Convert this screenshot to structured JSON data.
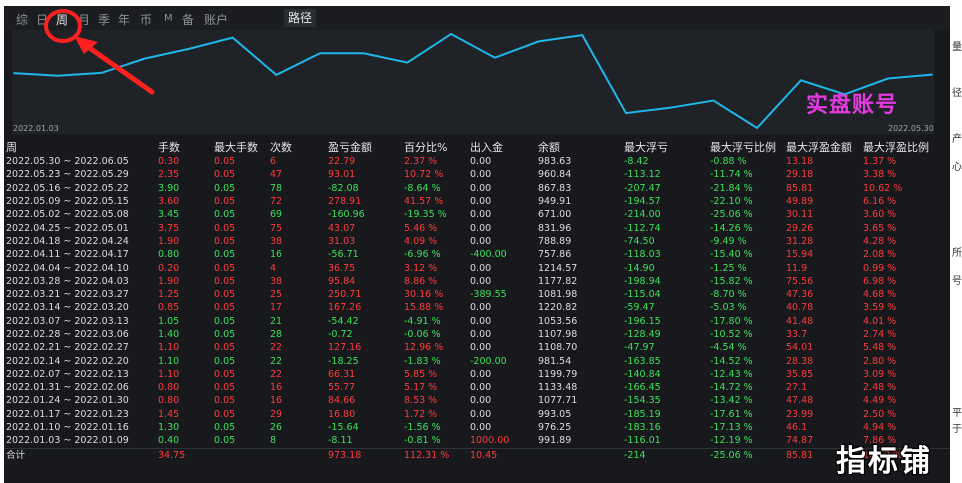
{
  "tabs": [
    {
      "id": "zong",
      "label": "综"
    },
    {
      "id": "ri",
      "label": "日"
    },
    {
      "id": "zhou",
      "label": "周",
      "active": true
    },
    {
      "id": "yue",
      "label": "月"
    },
    {
      "id": "ji",
      "label": "季"
    },
    {
      "id": "nian",
      "label": "年"
    },
    {
      "id": "bi",
      "label": "币"
    },
    {
      "id": "m",
      "label": "M"
    },
    {
      "id": "bei",
      "label": "备"
    },
    {
      "id": "zhanghu",
      "label": "账户"
    }
  ],
  "path_button_label": "路径",
  "watermark_label": "实盘账号",
  "corner_watermark": "指标铺",
  "colors": {
    "line": "#1fb6e8",
    "positive": "#ff3b3b",
    "negative": "#3ee05a",
    "annotation": "#ff2020",
    "watermark": "#e43be0"
  },
  "chart_data": {
    "type": "line",
    "x_start_label": "2022.01.03",
    "x_end_label": "2022.05.30",
    "x": [
      "2022.01.03",
      "2022.01.10",
      "2022.01.17",
      "2022.01.24",
      "2022.01.31",
      "2022.02.07",
      "2022.02.14",
      "2022.02.21",
      "2022.02.28",
      "2022.03.07",
      "2022.03.14",
      "2022.03.21",
      "2022.03.28",
      "2022.04.04",
      "2022.04.11",
      "2022.04.18",
      "2022.04.25",
      "2022.05.02",
      "2022.05.09",
      "2022.05.16",
      "2022.05.23",
      "2022.05.30"
    ],
    "series": [
      {
        "values": [
          991.89,
          976.25,
          993.05,
          1077.71,
          1133.48,
          1199.79,
          981.54,
          1108.7,
          1107.98,
          1053.56,
          1220.82,
          1081.98,
          1177.82,
          1214.57,
          757.86,
          788.89,
          831.96,
          671.0,
          949.91,
          867.83,
          960.84,
          983.63
        ]
      }
    ],
    "grid": false
  },
  "table": {
    "headers": [
      "周",
      "手数",
      "最大手数",
      "次数",
      "盈亏金额",
      "百分比%",
      "出入金",
      "余额",
      "最大浮亏",
      "最大浮亏比例",
      "最大浮盈金额",
      "最大浮盈比例"
    ],
    "rows": [
      [
        "2022.05.30 ~ 2022.06.05",
        "0.30",
        "0.05",
        "6",
        "22.79",
        "2.37 %",
        "0.00",
        "983.63",
        "-8.42",
        "-0.88 %",
        "13.18",
        "1.37 %"
      ],
      [
        "2022.05.23 ~ 2022.05.29",
        "2.35",
        "0.05",
        "47",
        "93.01",
        "10.72 %",
        "0.00",
        "960.84",
        "-113.12",
        "-11.74 %",
        "29.18",
        "3.38 %"
      ],
      [
        "2022.05.16 ~ 2022.05.22",
        "3.90",
        "0.05",
        "78",
        "-82.08",
        "-8.64 %",
        "0.00",
        "867.83",
        "-207.47",
        "-21.84 %",
        "85.81",
        "10.62 %"
      ],
      [
        "2022.05.09 ~ 2022.05.15",
        "3.60",
        "0.05",
        "72",
        "278.91",
        "41.57 %",
        "0.00",
        "949.91",
        "-194.57",
        "-22.10 %",
        "49.89",
        "6.16 %"
      ],
      [
        "2022.05.02 ~ 2022.05.08",
        "3.45",
        "0.05",
        "69",
        "-160.96",
        "-19.35 %",
        "0.00",
        "671.00",
        "-214.00",
        "-25.06 %",
        "30.11",
        "3.60 %"
      ],
      [
        "2022.04.25 ~ 2022.05.01",
        "3.75",
        "0.05",
        "75",
        "43.07",
        "5.46 %",
        "0.00",
        "831.96",
        "-112.74",
        "-14.26 %",
        "29.26",
        "3.65 %"
      ],
      [
        "2022.04.18 ~ 2022.04.24",
        "1.90",
        "0.05",
        "38",
        "31.03",
        "4.09 %",
        "0.00",
        "788.89",
        "-74.50",
        "-9.49 %",
        "31.28",
        "4.28 %"
      ],
      [
        "2022.04.11 ~ 2022.04.17",
        "0.80",
        "0.05",
        "16",
        "-56.71",
        "-6.96 %",
        "-400.00",
        "757.86",
        "-118.03",
        "-15.40 %",
        "15.94",
        "2.08 %"
      ],
      [
        "2022.04.04 ~ 2022.04.10",
        "0.20",
        "0.05",
        "4",
        "36.75",
        "3.12 %",
        "0.00",
        "1214.57",
        "-14.90",
        "-1.25 %",
        "11.9",
        "0.99 %"
      ],
      [
        "2022.03.28 ~ 2022.04.03",
        "1.90",
        "0.05",
        "38",
        "95.84",
        "8.86 %",
        "0.00",
        "1177.82",
        "-198.94",
        "-15.82 %",
        "75.56",
        "6.98 %"
      ],
      [
        "2022.03.21 ~ 2022.03.27",
        "1.25",
        "0.05",
        "25",
        "250.71",
        "30.16 %",
        "-389.55",
        "1081.98",
        "-115.04",
        "-8.70 %",
        "47.36",
        "4.68 %"
      ],
      [
        "2022.03.14 ~ 2022.03.20",
        "0.85",
        "0.05",
        "17",
        "167.26",
        "15.88 %",
        "0.00",
        "1220.82",
        "-59.47",
        "-5.03 %",
        "40.78",
        "3.59 %"
      ],
      [
        "2022.03.07 ~ 2022.03.13",
        "1.05",
        "0.05",
        "21",
        "-54.42",
        "-4.91 %",
        "0.00",
        "1053.56",
        "-196.15",
        "-17.80 %",
        "41.48",
        "4.01 %"
      ],
      [
        "2022.02.28 ~ 2022.03.06",
        "1.40",
        "0.05",
        "28",
        "-0.72",
        "-0.06 %",
        "0.00",
        "1107.98",
        "-128.49",
        "-10.52 %",
        "33.7",
        "2.74 %"
      ],
      [
        "2022.02.21 ~ 2022.02.27",
        "1.10",
        "0.05",
        "22",
        "127.16",
        "12.96 %",
        "0.00",
        "1108.70",
        "-47.97",
        "-4.54 %",
        "54.01",
        "5.48 %"
      ],
      [
        "2022.02.14 ~ 2022.02.20",
        "1.10",
        "0.05",
        "22",
        "-18.25",
        "-1.83 %",
        "-200.00",
        "981.54",
        "-163.85",
        "-14.52 %",
        "28.38",
        "2.80 %"
      ],
      [
        "2022.02.07 ~ 2022.02.13",
        "1.10",
        "0.05",
        "22",
        "66.31",
        "5.85 %",
        "0.00",
        "1199.79",
        "-140.84",
        "-12.43 %",
        "35.85",
        "3.09 %"
      ],
      [
        "2022.01.31 ~ 2022.02.06",
        "0.80",
        "0.05",
        "16",
        "55.77",
        "5.17 %",
        "0.00",
        "1133.48",
        "-166.45",
        "-14.72 %",
        "27.1",
        "2.48 %"
      ],
      [
        "2022.01.24 ~ 2022.01.30",
        "0.80",
        "0.05",
        "16",
        "84.66",
        "8.53 %",
        "0.00",
        "1077.71",
        "-154.35",
        "-13.42 %",
        "47.48",
        "4.49 %"
      ],
      [
        "2022.01.17 ~ 2022.01.23",
        "1.45",
        "0.05",
        "29",
        "16.80",
        "1.72 %",
        "0.00",
        "993.05",
        "-185.19",
        "-17.61 %",
        "23.99",
        "2.50 %"
      ],
      [
        "2022.01.10 ~ 2022.01.16",
        "1.30",
        "0.05",
        "26",
        "-15.64",
        "-1.56 %",
        "0.00",
        "976.25",
        "-183.16",
        "-17.13 %",
        "46.1",
        "4.94 %"
      ],
      [
        "2022.01.03 ~ 2022.01.09",
        "0.40",
        "0.05",
        "8",
        "-8.11",
        "-0.81 %",
        "1000.00",
        "991.89",
        "-116.01",
        "-12.19 %",
        "74.87",
        "7.86 %"
      ]
    ],
    "total": [
      "合计",
      "34.75",
      "",
      "",
      "973.18",
      "112.31 %",
      "10.45",
      "",
      "-214",
      "-25.06 %",
      "85.81",
      "10.62 %"
    ]
  },
  "right_strip_chars": [
    "量",
    "径",
    "产",
    "心",
    "所",
    "号",
    "平",
    "于"
  ]
}
